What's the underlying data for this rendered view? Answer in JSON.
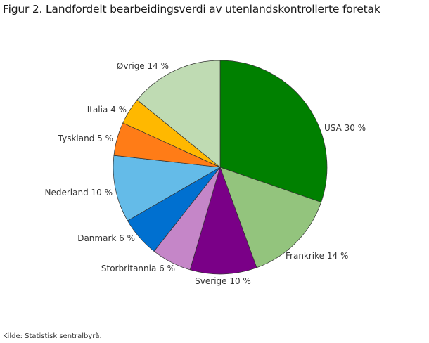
{
  "title": "Figur 2. Landfordelt bearbeidingsverdi av utenlandskontrollerte foretak",
  "source": "Kilde: Statistisk sentralbyrå.",
  "chart_data": {
    "type": "pie",
    "title": "Figur 2. Landfordelt bearbeidingsverdi av utenlandskontrollerte foretak",
    "unit": "%",
    "start_angle": "top, clockwise",
    "categories": [
      "USA",
      "Frankrike",
      "Sverige",
      "Storbritannia",
      "Danmark",
      "Nederland",
      "Tyskland",
      "Italia",
      "Øvrige"
    ],
    "values": [
      30,
      14,
      10,
      6,
      6,
      10,
      5,
      4,
      14
    ],
    "labels": [
      "USA 30 %",
      "Frankrike 14 %",
      "Sverige 10 %",
      "Storbritannia 6 %",
      "Danmark 6 %",
      "Nederland 10 %",
      "Tyskland 5 %",
      "Italia 4 %",
      "Øvrige 14 %"
    ],
    "colors": [
      "#008000",
      "#93c47d",
      "#7a0087",
      "#c586c8",
      "#0070d0",
      "#64bbe8",
      "#ff7c17",
      "#ffb800",
      "#bfdbb3"
    ],
    "source": "Kilde: Statistisk sentralbyrå."
  }
}
